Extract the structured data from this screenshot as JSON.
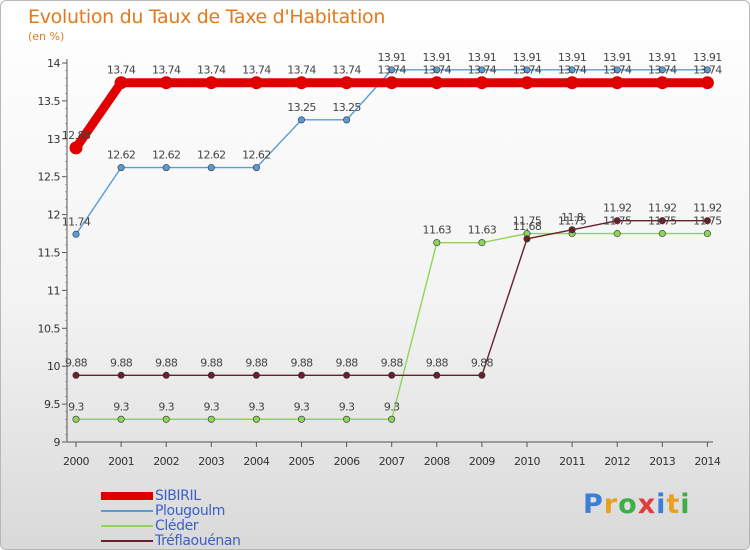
{
  "chart_data": {
    "type": "line",
    "title": "Evolution du Taux de Taxe d'Habitation",
    "subtitle": "(en %)",
    "x": [
      "2000",
      "2001",
      "2002",
      "2003",
      "2004",
      "2005",
      "2006",
      "2007",
      "2008",
      "2009",
      "2010",
      "2011",
      "2012",
      "2013",
      "2014"
    ],
    "ylim": [
      9,
      14
    ],
    "yticks": [
      "9",
      "9.5",
      "10",
      "10.5",
      "11",
      "11.5",
      "12",
      "12.5",
      "13",
      "13.5",
      "14"
    ],
    "grid": false,
    "legend_position": "bottom-left",
    "series": [
      {
        "name": "SIBIRIL",
        "color": "#e00000",
        "emphasis": true,
        "values": [
          12.88,
          13.74,
          13.74,
          13.74,
          13.74,
          13.74,
          13.74,
          13.74,
          13.74,
          13.74,
          13.74,
          13.74,
          13.74,
          13.74,
          13.74
        ],
        "labels": [
          "12.88",
          "13.74",
          "13.74",
          "13.74",
          "13.74",
          "13.74",
          "13.74",
          "13.74",
          "13.74",
          "13.74",
          "13.74",
          "13.74",
          "13.74",
          "13.74",
          "13.74"
        ]
      },
      {
        "name": "Plougoulm",
        "color": "#5b9bd5",
        "values": [
          11.74,
          12.62,
          12.62,
          12.62,
          12.62,
          13.25,
          13.25,
          13.91,
          13.91,
          13.91,
          13.91,
          13.91,
          13.91,
          13.91,
          13.91
        ],
        "labels": [
          "11.74",
          "12.62",
          "12.62",
          "12.62",
          "12.62",
          "13.25",
          "13.25",
          "13.91",
          "13.91",
          "13.91",
          "13.91",
          "13.91",
          "13.91",
          "13.91",
          "13.91"
        ]
      },
      {
        "name": "Cléder",
        "color": "#8fd45a",
        "values": [
          9.3,
          9.3,
          9.3,
          9.3,
          9.3,
          9.3,
          9.3,
          9.3,
          11.63,
          11.63,
          11.75,
          11.75,
          11.75,
          11.75,
          11.75
        ],
        "labels": [
          "9.3",
          "9.3",
          "9.3",
          "9.3",
          "9.3",
          "9.3",
          "9.3",
          "9.3",
          "11.63",
          "11.63",
          "11.75",
          "11.75",
          "11.75",
          "11.75",
          "11.75"
        ]
      },
      {
        "name": "Tréflaouénan",
        "color": "#6b1f2a",
        "values": [
          9.88,
          9.88,
          9.88,
          9.88,
          9.88,
          9.88,
          9.88,
          9.88,
          9.88,
          9.88,
          11.68,
          11.8,
          11.92,
          11.92,
          11.92
        ],
        "labels": [
          "9.88",
          "9.88",
          "9.88",
          "9.88",
          "9.88",
          "9.88",
          "9.88",
          "9.88",
          "9.88",
          "9.88",
          "11.68",
          "11.8",
          "11.92",
          "11.92",
          "11.92"
        ]
      }
    ]
  },
  "brand": {
    "name": "Proxiti",
    "letters": [
      {
        "ch": "P",
        "color": "#3a7fd5"
      },
      {
        "ch": "r",
        "color": "#e8a020"
      },
      {
        "ch": "o",
        "color": "#3fae49"
      },
      {
        "ch": "x",
        "color": "#e03c3c"
      },
      {
        "ch": "i",
        "color": "#3a7fd5"
      },
      {
        "ch": "t",
        "color": "#e8a020"
      },
      {
        "ch": "i",
        "color": "#3fae49"
      }
    ]
  }
}
